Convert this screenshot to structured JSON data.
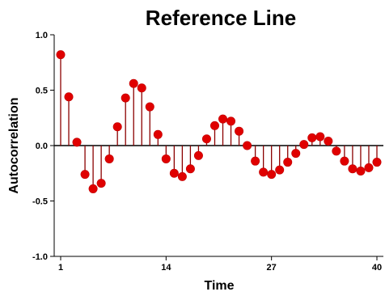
{
  "chart_data": {
    "type": "stem",
    "title": "Reference Line",
    "xlabel": "Time",
    "ylabel": "Autocorrelation",
    "xlim": [
      1,
      40
    ],
    "ylim": [
      -1.0,
      1.0
    ],
    "xticks": [
      1,
      14,
      27,
      40
    ],
    "xtick_labels": [
      "1",
      "14",
      "27",
      "40"
    ],
    "yticks": [
      -1.0,
      -0.5,
      0.0,
      0.5,
      1.0
    ],
    "ytick_labels": [
      "-1.0",
      "-0.5",
      "0.0",
      "0.5",
      "1.0"
    ],
    "reference_line": 0.0,
    "grid": false,
    "colors": {
      "marker": "#e00000",
      "stem": "#8b0000",
      "reference": "#000000"
    },
    "x": [
      1,
      2,
      3,
      4,
      5,
      6,
      7,
      8,
      9,
      10,
      11,
      12,
      13,
      14,
      15,
      16,
      17,
      18,
      19,
      20,
      21,
      22,
      23,
      24,
      25,
      26,
      27,
      28,
      29,
      30,
      31,
      32,
      33,
      34,
      35,
      36,
      37,
      38,
      39,
      40
    ],
    "values": [
      0.82,
      0.44,
      0.03,
      -0.26,
      -0.39,
      -0.34,
      -0.12,
      0.17,
      0.43,
      0.56,
      0.52,
      0.35,
      0.1,
      -0.12,
      -0.25,
      -0.28,
      -0.21,
      -0.09,
      0.06,
      0.18,
      0.24,
      0.22,
      0.13,
      0.0,
      -0.14,
      -0.24,
      -0.26,
      -0.22,
      -0.15,
      -0.07,
      0.01,
      0.07,
      0.08,
      0.04,
      -0.05,
      -0.14,
      -0.21,
      -0.23,
      -0.2,
      -0.15
    ]
  }
}
